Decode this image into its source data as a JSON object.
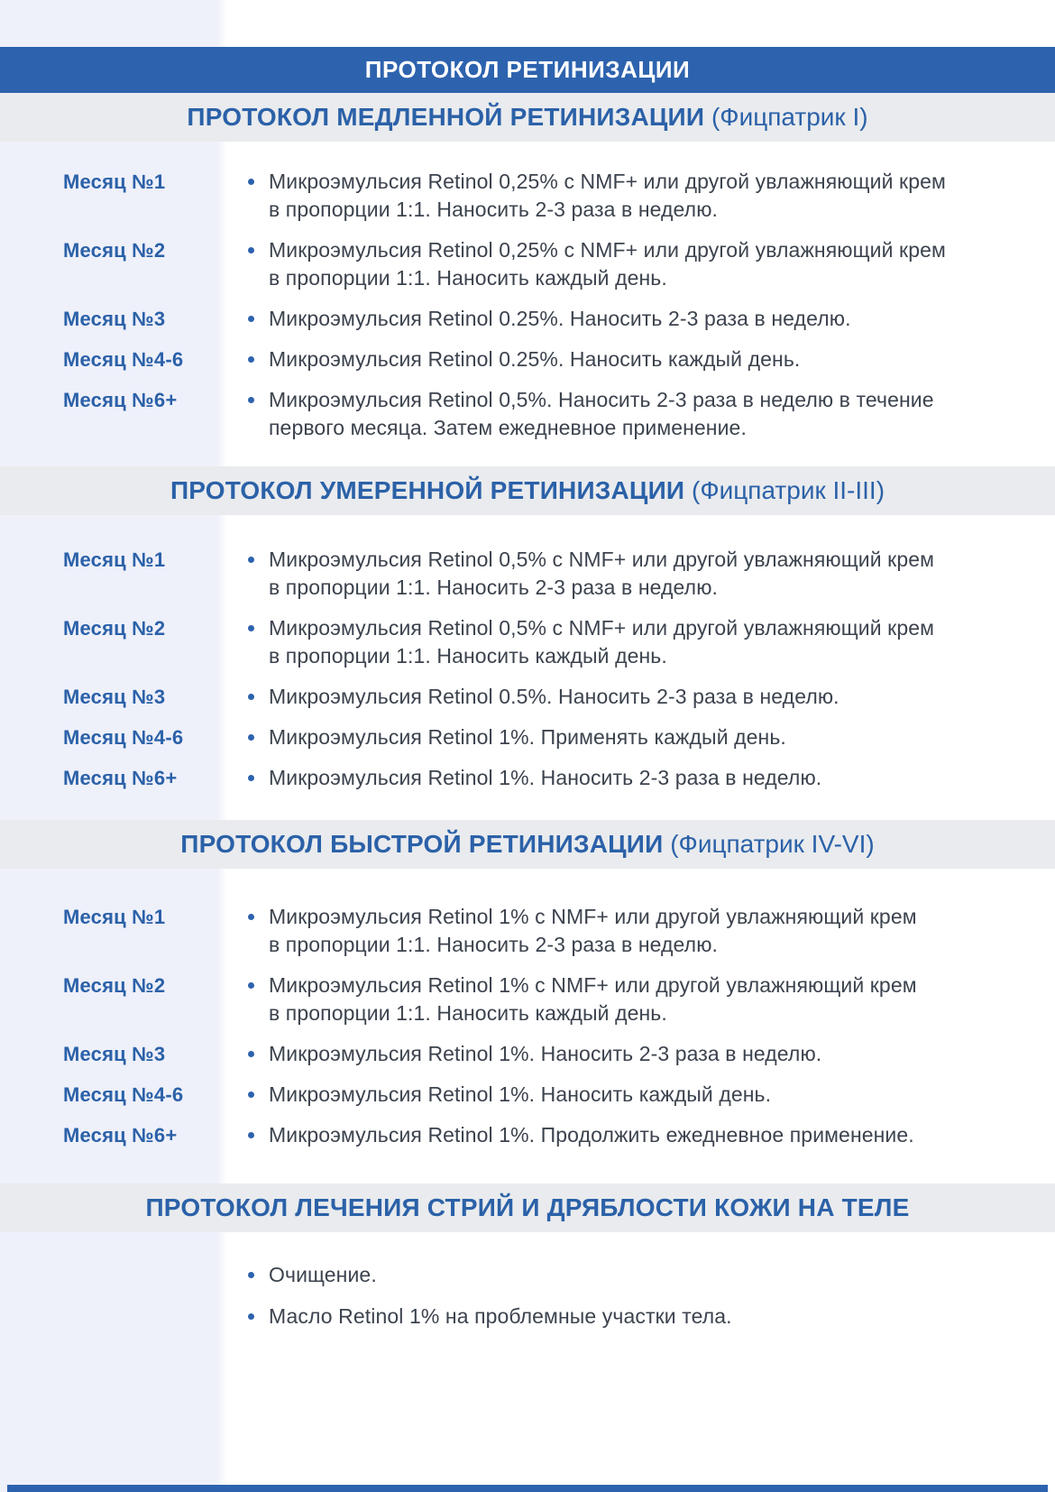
{
  "colors": {
    "accent_blue": "#2d63ae",
    "title_blue": "#2b61a8",
    "band_gray": "#e9ebee",
    "left_column": "#eef0fa",
    "body_text": "#3c434e"
  },
  "header": {
    "title": "ПРОТОКОЛ РЕТИНИЗАЦИИ"
  },
  "sections": [
    {
      "title_bold": "ПРОТОКОЛ МЕДЛЕННОЙ РЕТИНИЗАЦИИ",
      "title_note": " (Фицпатрик I)",
      "rows": [
        {
          "label": "Месяц №1",
          "text": "Микроэмульсия Retinol 0,25% с NMF+ или другой увлажняющий крем\nв пропорции 1:1. Наносить 2-3 раза в неделю."
        },
        {
          "label": "Месяц №2",
          "text": "Микроэмульсия Retinol 0,25% с NMF+ или другой увлажняющий крем\nв пропорции 1:1. Наносить каждый день."
        },
        {
          "label": "Месяц №3",
          "text": "Микроэмульсия Retinol 0.25%. Наносить 2-3 раза в неделю."
        },
        {
          "label": "Месяц №4-6",
          "text": "Микроэмульсия Retinol 0.25%. Наносить каждый день."
        },
        {
          "label": "Месяц №6+",
          "text": "Микроэмульсия Retinol 0,5%. Наносить 2-3 раза в неделю в течение\nпервого месяца. Затем ежедневное применение."
        }
      ]
    },
    {
      "title_bold": "ПРОТОКОЛ УМЕРЕННОЙ РЕТИНИЗАЦИИ",
      "title_note": " (Фицпатрик II-III)",
      "rows": [
        {
          "label": "Месяц №1",
          "text": "Микроэмульсия Retinol 0,5% с NMF+ или другой увлажняющий крем\nв пропорции 1:1. Наносить 2-3 раза в неделю."
        },
        {
          "label": "Месяц №2",
          "text": "Микроэмульсия Retinol 0,5% с NMF+ или другой увлажняющий крем\nв пропорции 1:1. Наносить каждый день."
        },
        {
          "label": "Месяц №3",
          "text": "Микроэмульсия Retinol 0.5%. Наносить 2-3 раза в неделю."
        },
        {
          "label": "Месяц №4-6",
          "text": "Микроэмульсия Retinol 1%. Применять каждый день."
        },
        {
          "label": "Месяц №6+",
          "text": "Микроэмульсия Retinol 1%. Наносить 2-3 раза в неделю."
        }
      ]
    },
    {
      "title_bold": "ПРОТОКОЛ БЫСТРОЙ РЕТИНИЗАЦИИ",
      "title_note": " (Фицпатрик IV-VI)",
      "rows": [
        {
          "label": "Месяц №1",
          "text": "Микроэмульсия Retinol 1% с NMF+ или другой увлажняющий крем\nв пропорции 1:1. Наносить 2-3 раза в неделю."
        },
        {
          "label": "Месяц №2",
          "text": "Микроэмульсия Retinol 1% с NMF+ или другой увлажняющий крем\nв пропорции 1:1. Наносить каждый день."
        },
        {
          "label": "Месяц №3",
          "text": "Микроэмульсия Retinol 1%. Наносить 2-3 раза в неделю."
        },
        {
          "label": "Месяц №4-6",
          "text": "Микроэмульсия Retinol 1%. Наносить каждый день."
        },
        {
          "label": "Месяц №6+",
          "text": "Микроэмульсия Retinol 1%. Продолжить ежедневное применение."
        }
      ]
    },
    {
      "title_bold": "ПРОТОКОЛ ЛЕЧЕНИЯ СТРИЙ И ДРЯБЛОСТИ КОЖИ НА ТЕЛЕ",
      "title_note": "",
      "rows": [
        {
          "label": "",
          "text": "Очищение."
        },
        {
          "label": "",
          "text": "Масло Retinol 1% на проблемные участки тела."
        }
      ]
    }
  ]
}
